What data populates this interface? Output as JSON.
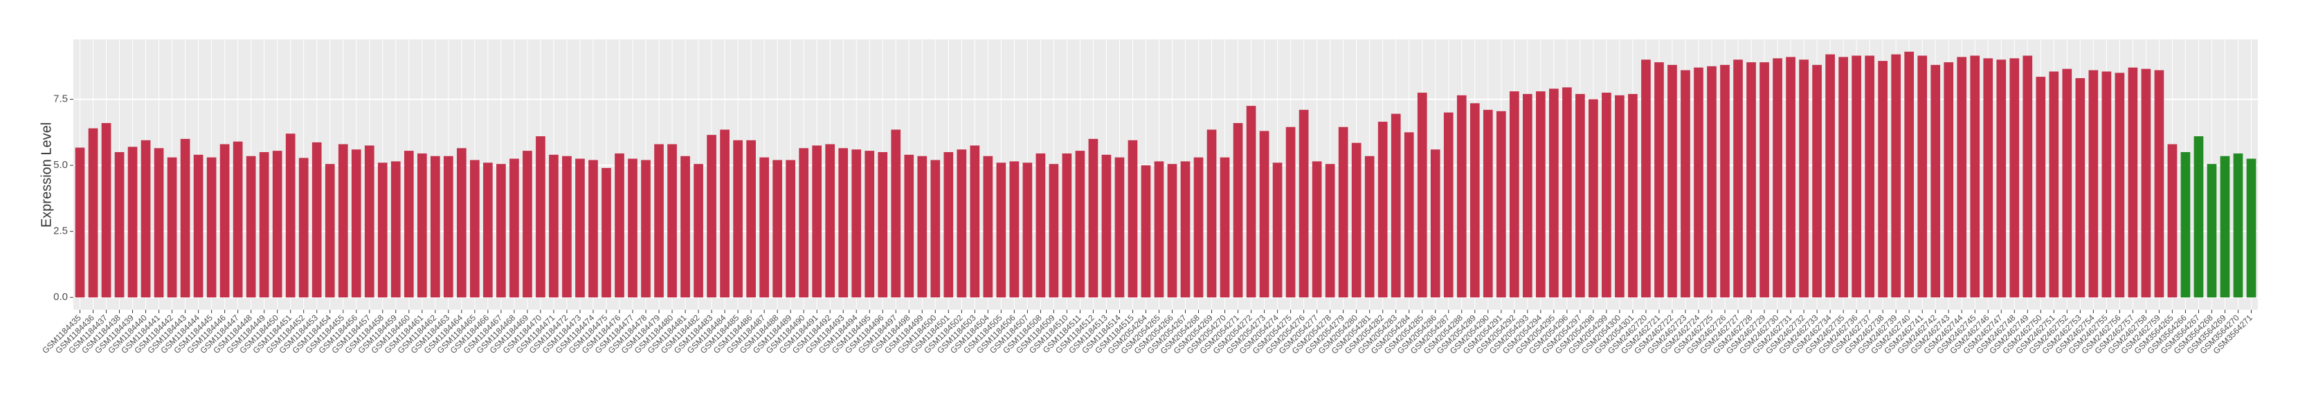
{
  "chart_data": {
    "type": "bar",
    "y_label": "Expression Level",
    "categories": [
      "GSM1184435",
      "GSM1184436",
      "GSM1184437",
      "GSM1184438",
      "GSM1184439",
      "GSM1184440",
      "GSM1184441",
      "GSM1184442",
      "GSM1184443",
      "GSM1184444",
      "GSM1184445",
      "GSM1184446",
      "GSM1184447",
      "GSM1184448",
      "GSM1184449",
      "GSM1184450",
      "GSM1184451",
      "GSM1184452",
      "GSM1184453",
      "GSM1184454",
      "GSM1184455",
      "GSM1184456",
      "GSM1184457",
      "GSM1184458",
      "GSM1184459",
      "GSM1184460",
      "GSM1184461",
      "GSM1184462",
      "GSM1184463",
      "GSM1184464",
      "GSM1184465",
      "GSM1184466",
      "GSM1184467",
      "GSM1184468",
      "GSM1184469",
      "GSM1184470",
      "GSM1184471",
      "GSM1184472",
      "GSM1184473",
      "GSM1184474",
      "GSM1184475",
      "GSM1184476",
      "GSM1184477",
      "GSM1184478",
      "GSM1184479",
      "GSM1184480",
      "GSM1184481",
      "GSM1184482",
      "GSM1184483",
      "GSM1184484",
      "GSM1184485",
      "GSM1184486",
      "GSM1184487",
      "GSM1184488",
      "GSM1184489",
      "GSM1184490",
      "GSM1184491",
      "GSM1184492",
      "GSM1184493",
      "GSM1184494",
      "GSM1184495",
      "GSM1184496",
      "GSM1184497",
      "GSM1184498",
      "GSM1184499",
      "GSM1184500",
      "GSM1184501",
      "GSM1184502",
      "GSM1184503",
      "GSM1184504",
      "GSM1184505",
      "GSM1184506",
      "GSM1184507",
      "GSM1184508",
      "GSM1184509",
      "GSM1184510",
      "GSM1184511",
      "GSM1184512",
      "GSM1184513",
      "GSM1184514",
      "GSM1184515",
      "GSM2054264",
      "GSM2054265",
      "GSM2054266",
      "GSM2054267",
      "GSM2054268",
      "GSM2054269",
      "GSM2054270",
      "GSM2054271",
      "GSM2054272",
      "GSM2054273",
      "GSM2054274",
      "GSM2054275",
      "GSM2054276",
      "GSM2054277",
      "GSM2054278",
      "GSM2054279",
      "GSM2054280",
      "GSM2054281",
      "GSM2054282",
      "GSM2054283",
      "GSM2054284",
      "GSM2054285",
      "GSM2054286",
      "GSM2054287",
      "GSM2054288",
      "GSM2054289",
      "GSM2054290",
      "GSM2054291",
      "GSM2054292",
      "GSM2054293",
      "GSM2054294",
      "GSM2054295",
      "GSM2054296",
      "GSM2054297",
      "GSM2054298",
      "GSM2054299",
      "GSM2054300",
      "GSM2054301",
      "GSM2462720",
      "GSM2462721",
      "GSM2462722",
      "GSM2462723",
      "GSM2462724",
      "GSM2462725",
      "GSM2462726",
      "GSM2462727",
      "GSM2462728",
      "GSM2462729",
      "GSM2462730",
      "GSM2462731",
      "GSM2462732",
      "GSM2462733",
      "GSM2462734",
      "GSM2462735",
      "GSM2462736",
      "GSM2462737",
      "GSM2462738",
      "GSM2462739",
      "GSM2462740",
      "GSM2462741",
      "GSM2462742",
      "GSM2462743",
      "GSM2462744",
      "GSM2462745",
      "GSM2462746",
      "GSM2462747",
      "GSM2462748",
      "GSM2462749",
      "GSM2462750",
      "GSM2462751",
      "GSM2462752",
      "GSM2462753",
      "GSM2462754",
      "GSM2462755",
      "GSM2462756",
      "GSM2462757",
      "GSM2462758",
      "GSM2462759",
      "GSM3564265",
      "GSM3564266",
      "GSM3564267",
      "GSM3564268",
      "GSM3564269",
      "GSM3564270",
      "GSM3564271"
    ],
    "values": [
      5.67,
      6.4,
      6.6,
      5.5,
      5.7,
      5.95,
      5.65,
      5.3,
      6.0,
      5.4,
      5.3,
      5.8,
      5.9,
      5.35,
      5.5,
      5.55,
      6.2,
      5.28,
      5.87,
      5.05,
      5.8,
      5.6,
      5.75,
      5.1,
      5.15,
      5.55,
      5.45,
      5.35,
      5.35,
      5.65,
      5.2,
      5.1,
      5.05,
      5.25,
      5.55,
      6.1,
      5.4,
      5.35,
      5.25,
      5.2,
      4.9,
      5.45,
      5.25,
      5.2,
      5.8,
      5.8,
      5.35,
      5.05,
      6.15,
      6.35,
      5.95,
      5.95,
      5.3,
      5.2,
      5.2,
      5.65,
      5.75,
      5.8,
      5.65,
      5.6,
      5.55,
      5.5,
      6.35,
      5.4,
      5.35,
      5.2,
      5.5,
      5.6,
      5.75,
      5.35,
      5.1,
      5.15,
      5.1,
      5.45,
      5.05,
      5.45,
      5.55,
      6.0,
      5.4,
      5.3,
      5.95,
      5.0,
      5.15,
      5.05,
      5.15,
      5.3,
      6.35,
      5.3,
      6.6,
      7.25,
      6.3,
      5.1,
      6.45,
      7.1,
      5.15,
      5.05,
      6.45,
      5.85,
      5.35,
      6.65,
      6.95,
      6.25,
      7.75,
      5.6,
      7.0,
      7.65,
      7.35,
      7.1,
      7.05,
      7.8,
      7.7,
      7.8,
      7.9,
      7.95,
      7.7,
      7.5,
      7.75,
      7.65,
      7.7,
      9.0,
      8.9,
      8.8,
      8.6,
      8.7,
      8.75,
      8.8,
      9.0,
      8.9,
      8.9,
      9.05,
      9.1,
      9.0,
      8.8,
      9.2,
      9.1,
      9.15,
      9.15,
      8.95,
      9.2,
      9.3,
      9.15,
      8.8,
      8.9,
      9.1,
      9.15,
      9.05,
      9.0,
      9.05,
      9.15,
      8.35,
      8.55,
      8.65,
      8.3,
      8.6,
      8.55,
      8.5,
      8.7,
      8.65,
      8.6,
      5.8,
      5.5,
      6.1,
      5.05,
      5.35,
      5.45,
      5.25
    ],
    "colors": [
      "#c4314b",
      "#c4314b",
      "#c4314b",
      "#c4314b",
      "#c4314b",
      "#c4314b",
      "#c4314b",
      "#c4314b",
      "#c4314b",
      "#c4314b",
      "#c4314b",
      "#c4314b",
      "#c4314b",
      "#c4314b",
      "#c4314b",
      "#c4314b",
      "#c4314b",
      "#c4314b",
      "#c4314b",
      "#c4314b",
      "#c4314b",
      "#c4314b",
      "#c4314b",
      "#c4314b",
      "#c4314b",
      "#c4314b",
      "#c4314b",
      "#c4314b",
      "#c4314b",
      "#c4314b",
      "#c4314b",
      "#c4314b",
      "#c4314b",
      "#c4314b",
      "#c4314b",
      "#c4314b",
      "#c4314b",
      "#c4314b",
      "#c4314b",
      "#c4314b",
      "#c4314b",
      "#c4314b",
      "#c4314b",
      "#c4314b",
      "#c4314b",
      "#c4314b",
      "#c4314b",
      "#c4314b",
      "#c4314b",
      "#c4314b",
      "#c4314b",
      "#c4314b",
      "#c4314b",
      "#c4314b",
      "#c4314b",
      "#c4314b",
      "#c4314b",
      "#c4314b",
      "#c4314b",
      "#c4314b",
      "#c4314b",
      "#c4314b",
      "#c4314b",
      "#c4314b",
      "#c4314b",
      "#c4314b",
      "#c4314b",
      "#c4314b",
      "#c4314b",
      "#c4314b",
      "#c4314b",
      "#c4314b",
      "#c4314b",
      "#c4314b",
      "#c4314b",
      "#c4314b",
      "#c4314b",
      "#c4314b",
      "#c4314b",
      "#c4314b",
      "#c4314b",
      "#c4314b",
      "#c4314b",
      "#c4314b",
      "#c4314b",
      "#c4314b",
      "#c4314b",
      "#c4314b",
      "#c4314b",
      "#c4314b",
      "#c4314b",
      "#c4314b",
      "#c4314b",
      "#c4314b",
      "#c4314b",
      "#c4314b",
      "#c4314b",
      "#c4314b",
      "#c4314b",
      "#c4314b",
      "#c4314b",
      "#c4314b",
      "#c4314b",
      "#c4314b",
      "#c4314b",
      "#c4314b",
      "#c4314b",
      "#c4314b",
      "#c4314b",
      "#c4314b",
      "#c4314b",
      "#c4314b",
      "#c4314b",
      "#c4314b",
      "#c4314b",
      "#c4314b",
      "#c4314b",
      "#c4314b",
      "#c4314b",
      "#c4314b",
      "#c4314b",
      "#c4314b",
      "#c4314b",
      "#c4314b",
      "#c4314b",
      "#c4314b",
      "#c4314b",
      "#c4314b",
      "#c4314b",
      "#c4314b",
      "#c4314b",
      "#c4314b",
      "#c4314b",
      "#c4314b",
      "#c4314b",
      "#c4314b",
      "#c4314b",
      "#c4314b",
      "#c4314b",
      "#c4314b",
      "#c4314b",
      "#c4314b",
      "#c4314b",
      "#c4314b",
      "#c4314b",
      "#c4314b",
      "#c4314b",
      "#c4314b",
      "#c4314b",
      "#c4314b",
      "#c4314b",
      "#c4314b",
      "#c4314b",
      "#c4314b",
      "#c4314b",
      "#c4314b",
      "#c4314b",
      "#c4314b",
      "#c4314b",
      "#c4314b",
      "#238b23",
      "#238b23",
      "#238b23",
      "#238b23",
      "#238b23",
      "#238b23",
      "#238b23"
    ],
    "ylim": [
      -0.465,
      9.765
    ],
    "yticks": [
      {
        "value": 0,
        "label": "0.0"
      },
      {
        "value": 2.5,
        "label": "2.5"
      },
      {
        "value": 5,
        "label": "5.0"
      },
      {
        "value": 7.5,
        "label": "7.5"
      }
    ],
    "grid": true
  }
}
